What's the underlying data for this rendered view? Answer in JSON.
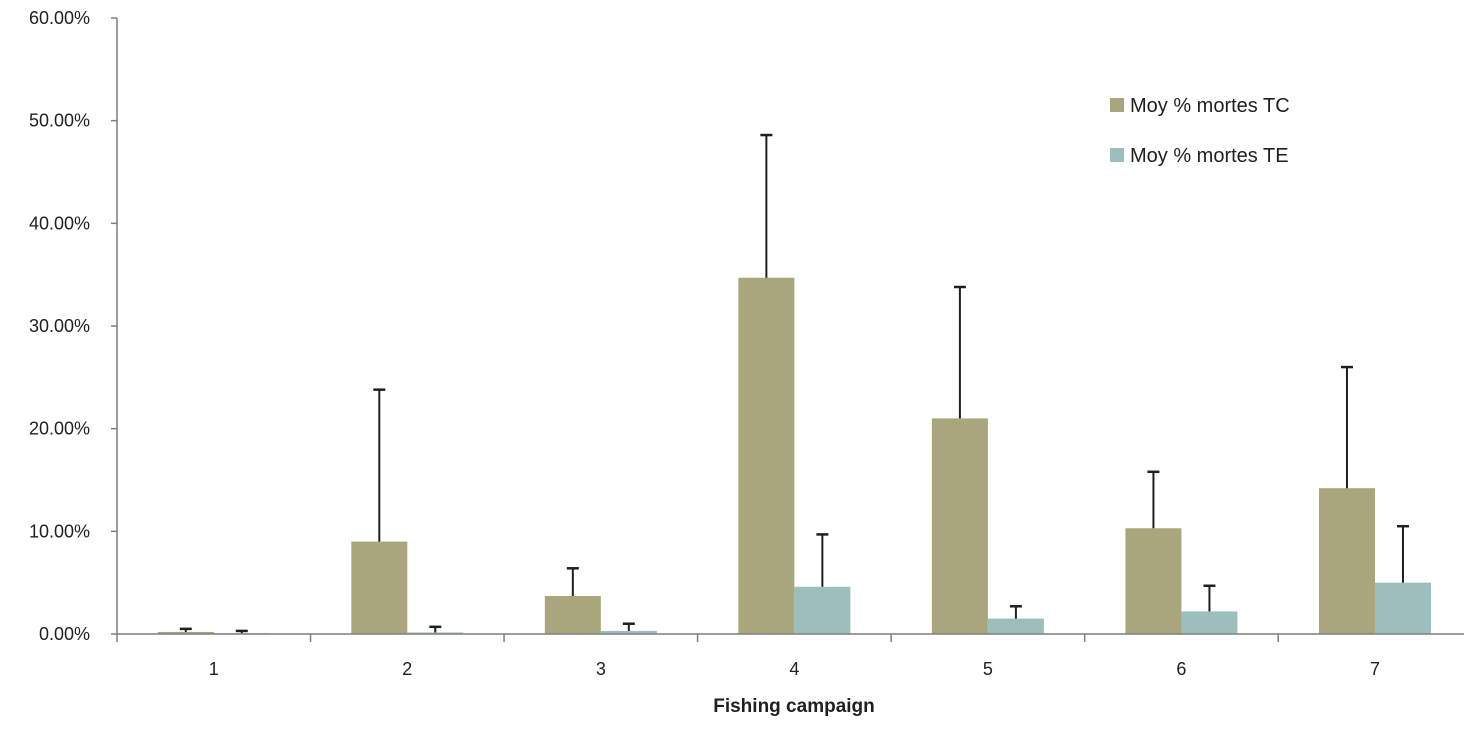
{
  "chart_data": {
    "type": "bar",
    "title": "",
    "xlabel": "Fishing campaign",
    "ylabel": "",
    "categories": [
      "1",
      "2",
      "3",
      "4",
      "5",
      "6",
      "7"
    ],
    "series": [
      {
        "name": "Moy % mortes TC",
        "color": "#a9a57c",
        "values": [
          0.2,
          9.0,
          3.7,
          34.7,
          21.0,
          10.3,
          14.2
        ],
        "error_upper": [
          0.5,
          23.8,
          6.4,
          48.6,
          33.8,
          15.8,
          26.0
        ]
      },
      {
        "name": "Moy % mortes TE",
        "color": "#9cbebd",
        "values": [
          0.05,
          0.15,
          0.3,
          4.6,
          1.5,
          2.2,
          5.0
        ],
        "error_upper": [
          0.3,
          0.7,
          1.0,
          9.7,
          2.7,
          4.7,
          10.5
        ]
      }
    ],
    "y_ticks": [
      "0.00%",
      "10.00%",
      "20.00%",
      "30.00%",
      "40.00%",
      "50.00%",
      "60.00%"
    ],
    "ylim": [
      0,
      60
    ],
    "grid": false,
    "legend_position": "top-right",
    "error_bar_color": "#1f1f1f",
    "axis_color": "#7f7f7f"
  }
}
